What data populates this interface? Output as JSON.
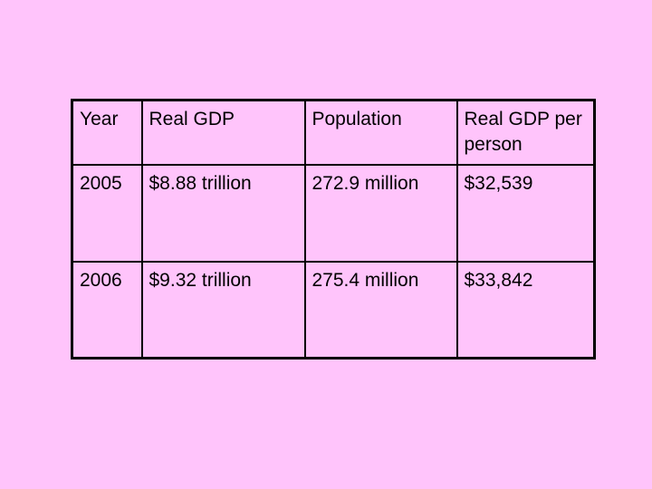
{
  "colors": {
    "background": "#ffc4fb",
    "border": "#000000",
    "text": "#000000"
  },
  "table": {
    "headers": [
      "Year",
      "Real GDP",
      "Population",
      "Real GDP per person"
    ],
    "rows": [
      [
        "2005",
        "$8.88 trillion",
        "272.9 million",
        "$32,539"
      ],
      [
        "2006",
        "$9.32 trillion",
        "275.4 million",
        "$33,842"
      ]
    ]
  }
}
